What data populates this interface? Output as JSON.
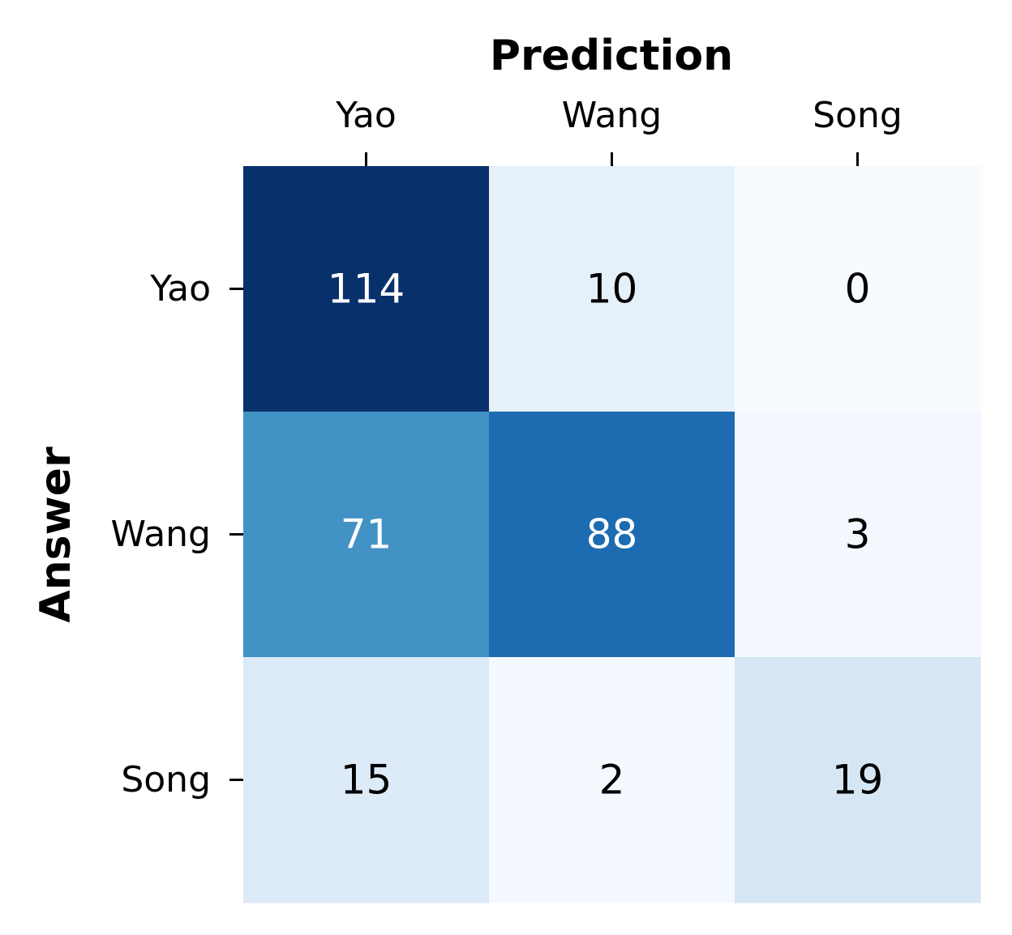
{
  "chart_data": {
    "type": "heatmap",
    "xlabel": "Prediction",
    "ylabel": "Answer",
    "x_categories": [
      "Yao",
      "Wang",
      "Song"
    ],
    "y_categories": [
      "Yao",
      "Wang",
      "Song"
    ],
    "values": [
      [
        114,
        10,
        0
      ],
      [
        71,
        88,
        3
      ],
      [
        15,
        2,
        19
      ]
    ],
    "colormap": "Blues",
    "vmin": 0,
    "vmax": 114,
    "x_axis_position": "top",
    "colorbar": false,
    "grid": false
  }
}
